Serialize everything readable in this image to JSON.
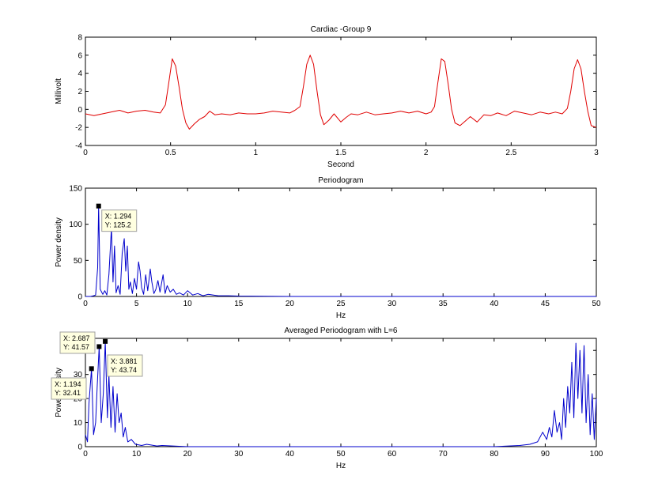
{
  "colors": {
    "background": "#ffffff",
    "axes": "#000000",
    "ecg_line": "#e00000",
    "psd_line": "#0000cc",
    "datatip_bg": "#ffffe0",
    "datatip_border": "#a0a0a0",
    "marker": "#000000"
  },
  "chart_data": [
    {
      "type": "line",
      "title": "Cardiac  -Group 9",
      "xlabel": "Second",
      "ylabel": "Millivolt",
      "xlim": [
        0,
        3
      ],
      "ylim": [
        -4,
        8
      ],
      "xticks": [
        "0",
        "0.5",
        "1",
        "1.5",
        "2",
        "2.5",
        "3"
      ],
      "yticks": [
        "-4",
        "-2",
        "0",
        "2",
        "4",
        "6",
        "8"
      ],
      "grid": false,
      "series": [
        {
          "color": "#e00000",
          "x": [
            0,
            0.05,
            0.1,
            0.15,
            0.2,
            0.25,
            0.3,
            0.35,
            0.4,
            0.44,
            0.47,
            0.49,
            0.51,
            0.53,
            0.55,
            0.57,
            0.59,
            0.61,
            0.64,
            0.67,
            0.7,
            0.73,
            0.76,
            0.8,
            0.85,
            0.9,
            0.95,
            1.0,
            1.05,
            1.1,
            1.15,
            1.2,
            1.23,
            1.26,
            1.28,
            1.3,
            1.32,
            1.34,
            1.36,
            1.38,
            1.4,
            1.43,
            1.46,
            1.5,
            1.53,
            1.56,
            1.6,
            1.65,
            1.7,
            1.75,
            1.8,
            1.85,
            1.9,
            1.95,
            2.0,
            2.03,
            2.05,
            2.07,
            2.09,
            2.11,
            2.13,
            2.15,
            2.17,
            2.2,
            2.23,
            2.26,
            2.3,
            2.34,
            2.38,
            2.42,
            2.47,
            2.52,
            2.57,
            2.62,
            2.67,
            2.72,
            2.76,
            2.8,
            2.83,
            2.85,
            2.87,
            2.89,
            2.91,
            2.93,
            2.95,
            2.97,
            3.0
          ],
          "y": [
            -0.5,
            -0.7,
            -0.5,
            -0.3,
            -0.1,
            -0.4,
            -0.2,
            -0.1,
            -0.3,
            -0.4,
            0.5,
            3.0,
            5.6,
            4.8,
            2.5,
            0.0,
            -1.5,
            -2.2,
            -1.6,
            -1.1,
            -0.8,
            -0.2,
            -0.6,
            -0.5,
            -0.6,
            -0.4,
            -0.5,
            -0.5,
            -0.4,
            -0.2,
            -0.3,
            -0.4,
            -0.1,
            0.3,
            2.5,
            5.0,
            6.0,
            5.0,
            2.0,
            -0.6,
            -1.7,
            -1.2,
            -0.5,
            -1.4,
            -0.9,
            -0.5,
            -0.6,
            -0.3,
            -0.6,
            -0.5,
            -0.4,
            -0.2,
            -0.4,
            -0.2,
            -0.5,
            -0.3,
            0.3,
            3.0,
            5.6,
            5.3,
            2.8,
            0.0,
            -1.5,
            -1.8,
            -1.3,
            -0.8,
            -1.4,
            -0.6,
            -0.7,
            -0.4,
            -0.7,
            -0.2,
            -0.4,
            -0.6,
            -0.3,
            -0.5,
            -0.3,
            -0.5,
            0.1,
            2.0,
            4.5,
            5.5,
            4.5,
            2.0,
            -0.2,
            -1.8,
            -2.0
          ]
        }
      ]
    },
    {
      "type": "line",
      "title": "Periodogram",
      "xlabel": "Hz",
      "ylabel": "Power density",
      "xlim": [
        0,
        50
      ],
      "ylim": [
        0,
        150
      ],
      "xticks": [
        "0",
        "5",
        "10",
        "15",
        "20",
        "25",
        "30",
        "35",
        "40",
        "45",
        "50"
      ],
      "yticks": [
        "0",
        "50",
        "100",
        "150"
      ],
      "grid": false,
      "series": [
        {
          "color": "#0000cc",
          "x": [
            0,
            0.5,
            0.8,
            1.0,
            1.2,
            1.294,
            1.45,
            1.7,
            1.9,
            2.1,
            2.3,
            2.55,
            2.7,
            2.85,
            3.0,
            3.2,
            3.4,
            3.6,
            3.8,
            3.95,
            4.1,
            4.25,
            4.4,
            4.6,
            4.8,
            5.0,
            5.2,
            5.35,
            5.5,
            5.7,
            5.9,
            6.1,
            6.35,
            6.5,
            6.7,
            6.9,
            7.1,
            7.3,
            7.6,
            7.8,
            8.0,
            8.3,
            8.6,
            8.9,
            9.2,
            9.6,
            10.0,
            10.5,
            11.0,
            11.5,
            12.0,
            13.0,
            14.0,
            15.0,
            20.0,
            30.0,
            40.0,
            50.0
          ],
          "y": [
            0,
            0,
            1,
            2,
            40,
            125.2,
            10,
            3,
            8,
            2,
            30,
            95,
            20,
            70,
            5,
            15,
            3,
            60,
            80,
            35,
            70,
            10,
            20,
            4,
            25,
            10,
            48,
            35,
            12,
            3,
            30,
            8,
            38,
            20,
            4,
            10,
            22,
            6,
            30,
            4,
            15,
            6,
            10,
            3,
            5,
            2,
            8,
            2,
            4,
            1,
            3,
            1,
            1,
            0.5,
            0,
            0,
            0,
            0
          ]
        }
      ]
    },
    {
      "type": "line",
      "title": "Averaged Periodogram with L=6",
      "xlabel": "Hz",
      "ylabel": "Power density",
      "xlim": [
        0,
        100
      ],
      "ylim": [
        0,
        45
      ],
      "xticks": [
        "0",
        "10",
        "20",
        "30",
        "40",
        "50",
        "60",
        "70",
        "80",
        "90",
        "100"
      ],
      "yticks": [
        "0",
        "10",
        "20",
        "30",
        "40"
      ],
      "grid": false,
      "series": [
        {
          "color": "#0000cc",
          "x": [
            0,
            0.4,
            0.7,
            1.194,
            1.6,
            2.0,
            2.3,
            2.687,
            3.1,
            3.5,
            3.881,
            4.3,
            4.6,
            5.0,
            5.4,
            5.8,
            6.2,
            6.6,
            7.0,
            7.4,
            7.8,
            8.3,
            9.0,
            9.8,
            11.0,
            12.0,
            14.0,
            15.0,
            20.0,
            80.0,
            85.0,
            87.0,
            88.5,
            89.5,
            90.3,
            90.8,
            91.3,
            91.8,
            92.3,
            92.8,
            93.2,
            93.6,
            94.0,
            94.4,
            94.8,
            95.2,
            95.6,
            96.0,
            96.4,
            96.8,
            97.2,
            97.6,
            98.0,
            98.4,
            98.8,
            99.2,
            99.6,
            100.0
          ],
          "y": [
            5,
            2,
            18,
            32.41,
            5,
            10,
            25,
            41.57,
            10,
            22,
            43.74,
            12,
            30,
            8,
            25,
            6,
            22,
            10,
            14,
            4,
            8,
            2,
            3,
            1,
            0.5,
            1,
            0.3,
            0.5,
            0,
            0,
            0.5,
            1,
            2,
            6,
            3,
            8,
            4,
            15,
            6,
            10,
            3,
            20,
            8,
            25,
            14,
            35,
            12,
            43,
            20,
            40,
            14,
            42,
            10,
            30,
            5,
            22,
            3,
            20
          ]
        }
      ]
    }
  ],
  "datatips": [
    {
      "chart": 1,
      "x": 1.294,
      "y": 125.2,
      "line1": "X: 1.294",
      "line2": "Y: 125.2"
    },
    {
      "chart": 2,
      "x": 2.687,
      "y": 41.57,
      "line1": "X: 2.687",
      "line2": "Y: 41.57"
    },
    {
      "chart": 2,
      "x": 3.881,
      "y": 43.74,
      "line1": "X: 3.881",
      "line2": "Y: 43.74"
    },
    {
      "chart": 2,
      "x": 1.194,
      "y": 32.41,
      "line1": "X: 1.194",
      "line2": "Y: 32.41"
    }
  ]
}
